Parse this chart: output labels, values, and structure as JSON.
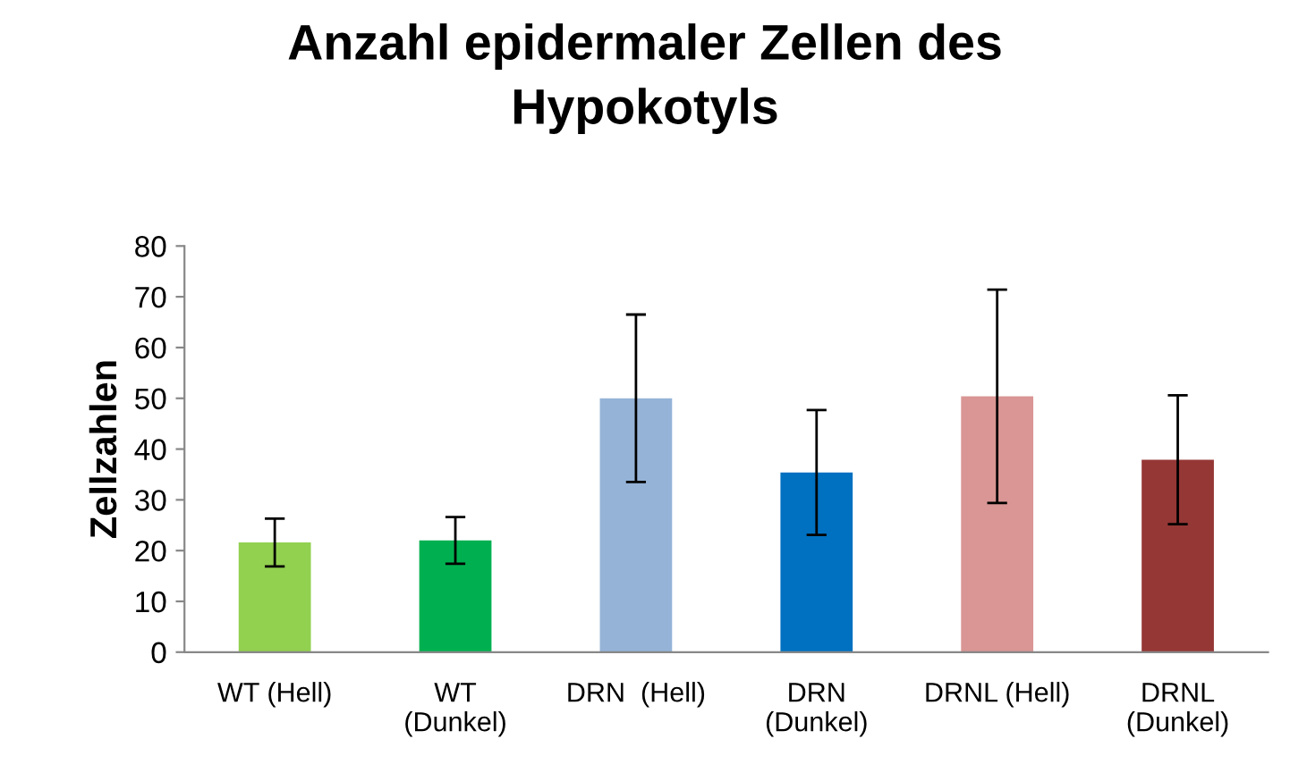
{
  "chart_data": {
    "type": "bar",
    "title": "Anzahl epidermaler Zellen des\nHypokotyls",
    "ylabel": "Zellzahlen",
    "categories": [
      "WT (Hell)",
      "WT\n(Dunkel)",
      "DRN  (Hell)",
      "DRN\n(Dunkel)",
      "DRNL (Hell)",
      "DRNL\n(Dunkel)"
    ],
    "values": [
      21.6,
      22,
      50,
      35.4,
      50.4,
      37.9
    ],
    "errors": [
      4.7,
      4.6,
      16.5,
      12.3,
      21,
      12.7
    ],
    "colors": [
      "#92d050",
      "#00b050",
      "#95b3d7",
      "#0070c0",
      "#d99694",
      "#953735"
    ],
    "ylim": [
      0,
      80
    ],
    "yticks": [
      0,
      10,
      20,
      30,
      40,
      50,
      60,
      70,
      80
    ],
    "grid": false,
    "legend": false
  }
}
